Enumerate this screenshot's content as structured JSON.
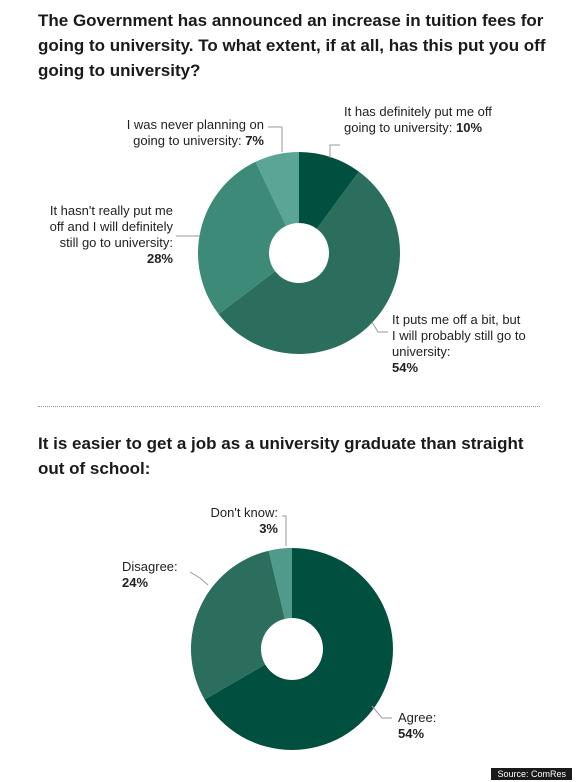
{
  "chart_data": [
    {
      "type": "pie",
      "title": "The Government has announced an increase in tuition fees for going to university. To what extent, if at all, has this put you off going to university?",
      "slices": [
        {
          "label": "It has definitely put me off going to university:",
          "value": 10,
          "value_label": "10%",
          "color": "#004f3f"
        },
        {
          "label": "It puts me off a bit, but I will probably still go to university:",
          "value": 54,
          "value_label": "54%",
          "color": "#2b6e5e"
        },
        {
          "label": "It hasn't really put me off and I will definitely still go to university:",
          "value": 28,
          "value_label": "28%",
          "color": "#3d8a78"
        },
        {
          "label": "I was never planning on going to university:",
          "value": 7,
          "value_label": "7%",
          "color": "#5aa596"
        }
      ]
    },
    {
      "type": "pie",
      "title": "It is easier to get a job as a university graduate than straight out of school:",
      "slices": [
        {
          "label": "Agree:",
          "value": 54,
          "value_label": "54%",
          "color": "#004f3f"
        },
        {
          "label": "Disagree:",
          "value": 24,
          "value_label": "24%",
          "color": "#2b6e5e"
        },
        {
          "label": "Don't know:",
          "value": 3,
          "value_label": "3%",
          "color": "#4f9a8a"
        }
      ]
    }
  ],
  "source": "Source: ComRes"
}
